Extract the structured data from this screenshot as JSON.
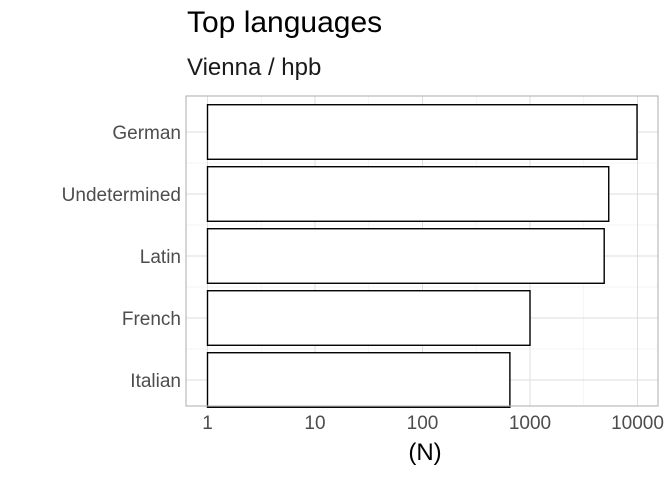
{
  "chart_data": {
    "type": "bar",
    "orientation": "horizontal",
    "title": "Top languages",
    "subtitle": "Vienna / hpb",
    "xlabel": "(N)",
    "ylabel": "",
    "x_scale": "log10",
    "xlim": [
      1,
      10000
    ],
    "x_ticks": [
      "1",
      "10",
      "100",
      "1000",
      "10000"
    ],
    "categories": [
      "German",
      "Undetermined",
      "Latin",
      "French",
      "Italian"
    ],
    "values": [
      9900,
      5400,
      4900,
      1000,
      650
    ],
    "bar_fill": "#ffffff",
    "bar_stroke": "#000000",
    "grid": true
  }
}
